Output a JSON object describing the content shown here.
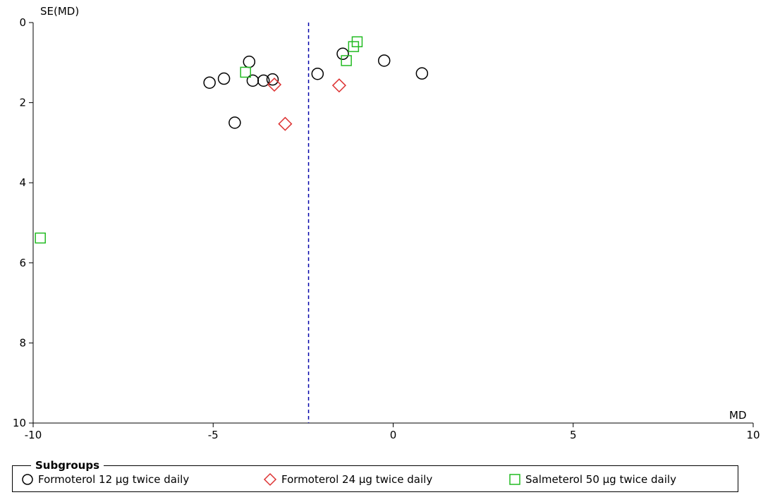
{
  "chart_data": {
    "type": "scatter",
    "xlabel": "MD",
    "ylabel": "SE(MD)",
    "xlim": [
      -10,
      10
    ],
    "ylim": [
      0,
      10
    ],
    "y_inverted": true,
    "xticks": [
      -10,
      -5,
      0,
      5,
      10
    ],
    "yticks": [
      0,
      2,
      4,
      6,
      8,
      10
    ],
    "grid": false,
    "reference_line": {
      "x": -2.35,
      "style": "dashed",
      "color": "#0000aa"
    },
    "legend": {
      "title": "Subgroups",
      "position": "bottom"
    },
    "series": [
      {
        "name": "Formoterol 12 µg twice daily",
        "marker": "circle",
        "color": "#000000",
        "points": [
          {
            "x": -5.1,
            "y": 1.5
          },
          {
            "x": -4.7,
            "y": 1.4
          },
          {
            "x": -4.0,
            "y": 0.98
          },
          {
            "x": -3.9,
            "y": 1.45
          },
          {
            "x": -3.6,
            "y": 1.45
          },
          {
            "x": -3.35,
            "y": 1.42
          },
          {
            "x": -4.4,
            "y": 2.5
          },
          {
            "x": -2.1,
            "y": 1.28
          },
          {
            "x": -1.4,
            "y": 0.78
          },
          {
            "x": -0.25,
            "y": 0.95
          },
          {
            "x": 0.8,
            "y": 1.27
          }
        ]
      },
      {
        "name": "Formoterol 24 µg twice daily",
        "marker": "diamond",
        "color": "#dd3333",
        "points": [
          {
            "x": -3.3,
            "y": 1.55
          },
          {
            "x": -3.0,
            "y": 2.53
          },
          {
            "x": -1.5,
            "y": 1.57
          }
        ]
      },
      {
        "name": "Salmeterol 50 µg twice daily",
        "marker": "square",
        "color": "#22bb22",
        "points": [
          {
            "x": -4.1,
            "y": 1.24
          },
          {
            "x": -1.3,
            "y": 0.95
          },
          {
            "x": -1.1,
            "y": 0.6
          },
          {
            "x": -1.0,
            "y": 0.48
          },
          {
            "x": -9.8,
            "y": 5.38
          }
        ]
      }
    ]
  }
}
